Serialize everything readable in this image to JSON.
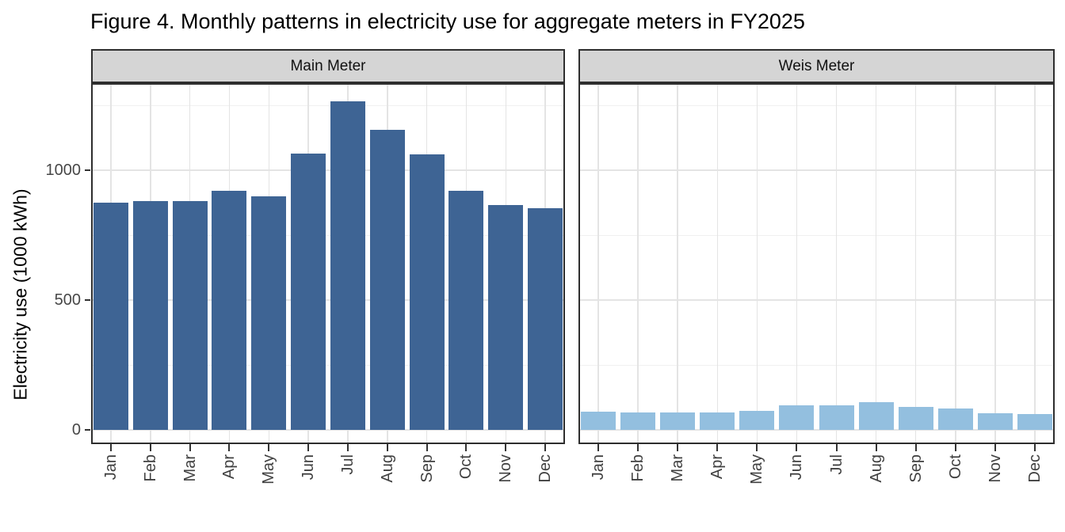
{
  "title": "Figure 4. Monthly patterns in electricity use for aggregate meters in FY2025",
  "chart_data": {
    "type": "bar",
    "title": "Figure 4. Monthly patterns in electricity use for aggregate meters in FY2025",
    "xlabel": "",
    "ylabel": "Electricity use (1000 kWh)",
    "categories": [
      "Jan",
      "Feb",
      "Mar",
      "Apr",
      "May",
      "Jun",
      "Jul",
      "Aug",
      "Sep",
      "Oct",
      "Nov",
      "Dec"
    ],
    "series": [
      {
        "name": "Main Meter",
        "values": [
          875,
          880,
          880,
          920,
          900,
          1065,
          1265,
          1155,
          1060,
          920,
          865,
          855
        ],
        "color": "#3E6494"
      },
      {
        "name": "Weis Meter",
        "values": [
          70,
          68,
          67,
          67,
          72,
          93,
          93,
          106,
          89,
          82,
          65,
          60
        ],
        "color": "#93BFDF"
      }
    ],
    "facet_layout": "two column panels sharing y axis",
    "y_ticks": [
      0,
      500,
      1000
    ],
    "y_minor_ticks": [
      250,
      750,
      1250
    ],
    "ylim": [
      -55,
      1335
    ],
    "grid": "major and minor horizontal, major vertical per month",
    "legend": "none"
  },
  "colors": {
    "strip_bg": "#D5D5D5",
    "panel_border": "#2E2E2E",
    "grid_major": "#E4E4E4",
    "grid_minor": "#F0F0F0",
    "tick_mark": "#333333",
    "tick_label": "#474747",
    "title_text": "#000000"
  }
}
